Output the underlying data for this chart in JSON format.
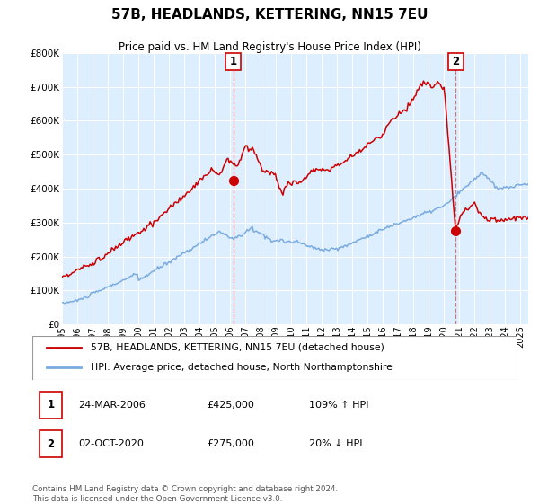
{
  "title": "57B, HEADLANDS, KETTERING, NN15 7EU",
  "subtitle": "Price paid vs. HM Land Registry's House Price Index (HPI)",
  "legend_line1": "57B, HEADLANDS, KETTERING, NN15 7EU (detached house)",
  "legend_line2": "HPI: Average price, detached house, North Northamptonshire",
  "annotation1_date": "24-MAR-2006",
  "annotation1_price": "£425,000",
  "annotation1_hpi": "109% ↑ HPI",
  "annotation2_date": "02-OCT-2020",
  "annotation2_price": "£275,000",
  "annotation2_hpi": "20% ↓ HPI",
  "footer": "Contains HM Land Registry data © Crown copyright and database right 2024.\nThis data is licensed under the Open Government Licence v3.0.",
  "red_color": "#cc0000",
  "blue_color": "#7aabe0",
  "bg_color": "#ddeeff",
  "vline_color": "#dd6666",
  "ylim": [
    0,
    800000
  ],
  "yticks": [
    0,
    100000,
    200000,
    300000,
    400000,
    500000,
    600000,
    700000,
    800000
  ],
  "ytick_labels": [
    "£0",
    "£100K",
    "£200K",
    "£300K",
    "£400K",
    "£500K",
    "£600K",
    "£700K",
    "£800K"
  ],
  "sale1_year": 2006.22,
  "sale1_price": 425000,
  "sale2_year": 2020.75,
  "sale2_price": 275000,
  "xmin": 1995,
  "xmax": 2025.5
}
